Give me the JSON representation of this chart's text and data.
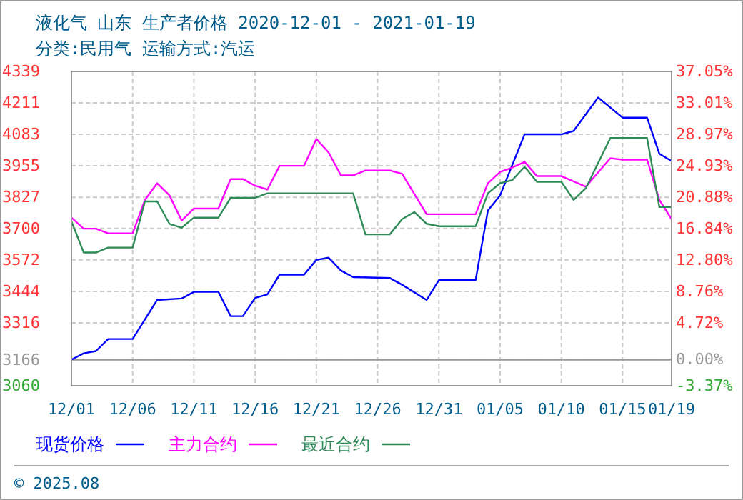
{
  "chart_data": {
    "type": "line",
    "title": "液化气 山东 生产者价格 2020-12-01 - 2021-01-19",
    "subtitle": "分类:民用气 运输方式:汽运",
    "xlim": [
      "2020-12-01",
      "2021-01-19"
    ],
    "xticks": [
      {
        "value": "2020-12-01",
        "label": "12/01"
      },
      {
        "value": "2020-12-06",
        "label": "12/06"
      },
      {
        "value": "2020-12-11",
        "label": "12/11"
      },
      {
        "value": "2020-12-16",
        "label": "12/16"
      },
      {
        "value": "2020-12-21",
        "label": "12/21"
      },
      {
        "value": "2020-12-26",
        "label": "12/26"
      },
      {
        "value": "2020-12-31",
        "label": "12/31"
      },
      {
        "value": "2021-01-05",
        "label": "01/05"
      },
      {
        "value": "2021-01-10",
        "label": "01/10"
      },
      {
        "value": "2021-01-15",
        "label": "01/15"
      },
      {
        "value": "2021-01-19",
        "label": "01/19"
      }
    ],
    "ylim": [
      3060,
      4339
    ],
    "yticks": [
      3060,
      3166,
      3316,
      3444,
      3572,
      3700,
      3827,
      3955,
      4083,
      4211,
      4339
    ],
    "y2lim": [
      -3.37,
      37.05
    ],
    "y2ticks": [
      {
        "value": -3.37,
        "label": "-3.37%"
      },
      {
        "value": 0,
        "label": "0.00%"
      },
      {
        "value": 4.72,
        "label": "4.72%"
      },
      {
        "value": 8.76,
        "label": "8.76%"
      },
      {
        "value": 12.8,
        "label": "12.80%"
      },
      {
        "value": 16.84,
        "label": "16.84%"
      },
      {
        "value": 20.88,
        "label": "20.88%"
      },
      {
        "value": 24.93,
        "label": "24.93%"
      },
      {
        "value": 28.97,
        "label": "28.97%"
      },
      {
        "value": 33.01,
        "label": "33.01%"
      },
      {
        "value": 37.05,
        "label": "37.05%"
      }
    ],
    "grid": true,
    "legend": "bottom",
    "marker": "none",
    "line_style": "solid",
    "ref_lines": [
      {
        "axis": "y",
        "value": 3166,
        "color": "#999999"
      }
    ],
    "annotations": [
      "© 2025.08"
    ],
    "series": [
      {
        "name": "现货价格",
        "color": "#0000ff",
        "x": [
          "2020-12-01",
          "2020-12-02",
          "2020-12-03",
          "2020-12-04",
          "2020-12-06",
          "2020-12-08",
          "2020-12-10",
          "2020-12-11",
          "2020-12-13",
          "2020-12-14",
          "2020-12-15",
          "2020-12-16",
          "2020-12-17",
          "2020-12-18",
          "2020-12-20",
          "2020-12-21",
          "2020-12-22",
          "2020-12-23",
          "2020-12-24",
          "2020-12-27",
          "2020-12-28",
          "2020-12-30",
          "2020-12-31",
          "2021-01-03",
          "2021-01-04",
          "2021-01-05",
          "2021-01-07",
          "2021-01-10",
          "2021-01-11",
          "2021-01-13",
          "2021-01-15",
          "2021-01-17",
          "2021-01-18",
          "2021-01-19"
        ],
        "values": [
          3166,
          3192,
          3201,
          3250,
          3250,
          3409,
          3415,
          3442,
          3442,
          3343,
          3343,
          3417,
          3432,
          3512,
          3512,
          3572,
          3581,
          3529,
          3502,
          3498,
          3471,
          3409,
          3490,
          3490,
          3773,
          3835,
          4083,
          4083,
          4097,
          4233,
          4151,
          4151,
          4004,
          3974
        ]
      },
      {
        "name": "主力合约",
        "color": "#ff00ff",
        "x": [
          "2020-12-01",
          "2020-12-02",
          "2020-12-03",
          "2020-12-04",
          "2020-12-06",
          "2020-12-07",
          "2020-12-08",
          "2020-12-09",
          "2020-12-10",
          "2020-12-11",
          "2020-12-13",
          "2020-12-14",
          "2020-12-15",
          "2020-12-16",
          "2020-12-17",
          "2020-12-18",
          "2020-12-20",
          "2020-12-21",
          "2020-12-22",
          "2020-12-23",
          "2020-12-24",
          "2020-12-25",
          "2020-12-27",
          "2020-12-28",
          "2020-12-30",
          "2021-01-03",
          "2021-01-04",
          "2021-01-05",
          "2021-01-06",
          "2021-01-07",
          "2021-01-08",
          "2021-01-10",
          "2021-01-12",
          "2021-01-14",
          "2021-01-15",
          "2021-01-17",
          "2021-01-18",
          "2021-01-19"
        ],
        "values": [
          3744,
          3699,
          3699,
          3680,
          3680,
          3816,
          3884,
          3835,
          3732,
          3781,
          3781,
          3901,
          3901,
          3874,
          3858,
          3955,
          3955,
          4064,
          4009,
          3916,
          3916,
          3936,
          3936,
          3922,
          3758,
          3758,
          3884,
          3930,
          3948,
          3971,
          3913,
          3913,
          3870,
          3986,
          3980,
          3980,
          3816,
          3738
        ]
      },
      {
        "name": "最近合约",
        "color": "#2e8b57",
        "x": [
          "2020-12-01",
          "2020-12-02",
          "2020-12-03",
          "2020-12-04",
          "2020-12-06",
          "2020-12-07",
          "2020-12-08",
          "2020-12-09",
          "2020-12-10",
          "2020-12-11",
          "2020-12-13",
          "2020-12-14",
          "2020-12-16",
          "2020-12-17",
          "2020-12-24",
          "2020-12-25",
          "2020-12-27",
          "2020-12-28",
          "2020-12-29",
          "2020-12-30",
          "2020-12-31",
          "2021-01-03",
          "2021-01-04",
          "2021-01-05",
          "2021-01-06",
          "2021-01-07",
          "2021-01-08",
          "2021-01-10",
          "2021-01-11",
          "2021-01-12",
          "2021-01-14",
          "2021-01-17",
          "2021-01-18",
          "2021-01-19"
        ],
        "values": [
          3729,
          3602,
          3602,
          3622,
          3622,
          3810,
          3810,
          3719,
          3703,
          3744,
          3744,
          3825,
          3825,
          3843,
          3843,
          3676,
          3676,
          3738,
          3767,
          3719,
          3709,
          3709,
          3843,
          3884,
          3897,
          3951,
          3890,
          3890,
          3816,
          3864,
          4068,
          4068,
          3787,
          3787
        ]
      }
    ]
  }
}
